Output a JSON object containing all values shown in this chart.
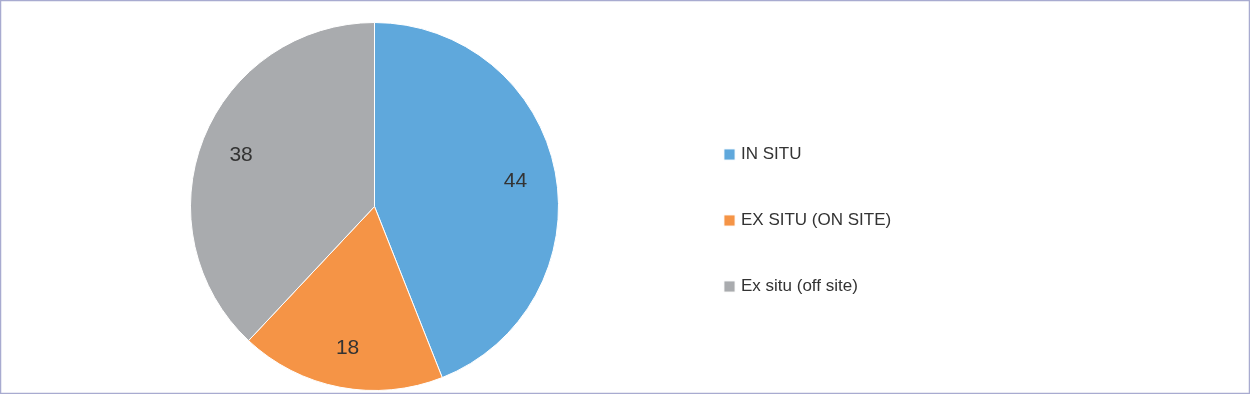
{
  "chart_data": {
    "type": "pie",
    "categories": [
      "IN SITU",
      "EX SITU (ON SITE)",
      "Ex situ (off site)"
    ],
    "values": [
      44,
      18,
      38
    ],
    "colors": [
      "#5fa8dc",
      "#f59446",
      "#a9abae"
    ],
    "data_labels": true,
    "legend": "right"
  }
}
